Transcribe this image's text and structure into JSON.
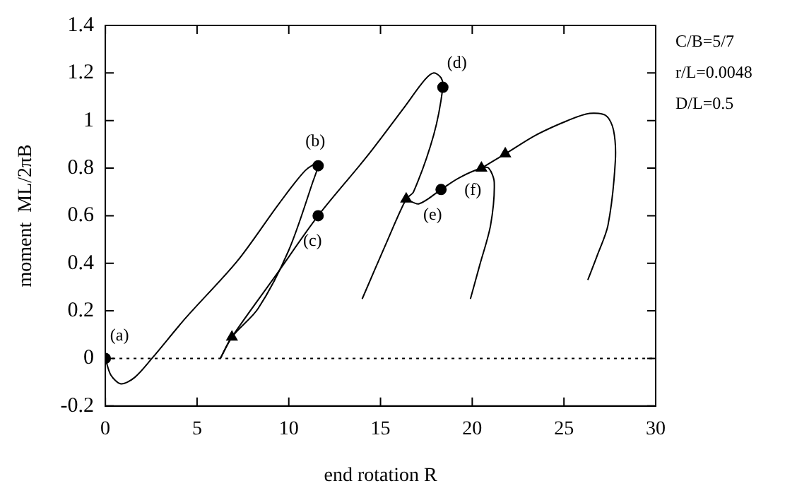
{
  "chart_data": {
    "type": "line",
    "xlabel": "end rotation R",
    "ylabel": "moment  ML/2πB",
    "xlim": [
      0,
      30
    ],
    "xticks": [
      0,
      5,
      10,
      15,
      20,
      25,
      30
    ],
    "ylim": [
      -0.2,
      1.4
    ],
    "yticks": [
      -0.2,
      0,
      0.2,
      0.4,
      0.6,
      0.8,
      1,
      1.2,
      1.4
    ],
    "grid": false,
    "legend": false,
    "series": [
      {
        "type": "line",
        "color": "#000000",
        "marker": "none",
        "x": [
          0,
          0.3,
          0.85,
          1.6,
          2.54,
          4.38,
          7.2,
          9.46,
          10.9,
          11.6,
          11.3,
          10.0,
          8.33,
          6.9,
          6.27
        ],
        "values": [
          0,
          -0.07,
          -0.107,
          -0.08,
          0,
          0.17,
          0.41,
          0.65,
          0.79,
          0.82,
          0.74,
          0.455,
          0.21,
          0.09,
          0
        ]
      },
      {
        "type": "line",
        "color": "#000000",
        "marker": "none",
        "x": [
          6.27,
          6.9,
          9.3,
          11.6,
          14.27,
          16.24,
          17.4,
          17.9,
          18.3,
          18.4,
          17.9,
          16.8,
          16.4,
          15.4,
          14.0
        ],
        "values": [
          0,
          0.09,
          0.35,
          0.6,
          0.85,
          1.05,
          1.17,
          1.2,
          1.18,
          1.14,
          0.94,
          0.7,
          0.67,
          0.5,
          0.25
        ]
      },
      {
        "type": "line",
        "color": "#000000",
        "marker": "none",
        "x": [
          16.4,
          17.1,
          18.3,
          19.3,
          20.5,
          20.9,
          21.2,
          21.0,
          20.4,
          19.9
        ],
        "values": [
          0.67,
          0.65,
          0.71,
          0.76,
          0.8,
          0.8,
          0.74,
          0.56,
          0.39,
          0.25
        ]
      },
      {
        "type": "line",
        "color": "#000000",
        "marker": "none",
        "x": [
          20.5,
          21.8,
          23.5,
          25.2,
          26.4,
          27.3,
          27.7,
          27.8,
          27.4,
          26.8,
          26.3
        ],
        "values": [
          0.8,
          0.86,
          0.94,
          1.0,
          1.03,
          1.02,
          0.96,
          0.83,
          0.56,
          0.43,
          0.33
        ]
      },
      {
        "type": "scatter",
        "color": "#000000",
        "marker": "circle",
        "x": [
          0,
          11.6,
          11.6,
          18.4,
          18.3
        ],
        "values": [
          0,
          0.81,
          0.6,
          1.14,
          0.71
        ]
      },
      {
        "type": "scatter",
        "color": "#000000",
        "marker": "triangle",
        "x": [
          6.9,
          16.4,
          20.5,
          21.8
        ],
        "values": [
          0.09,
          0.67,
          0.8,
          0.86
        ]
      }
    ],
    "ref_lines": [
      {
        "axis": "y",
        "value": 0,
        "line_style": "dotted",
        "color": "#000000"
      }
    ],
    "annotations": [
      {
        "text": "(a)",
        "x": 0,
        "y": 0
      },
      {
        "text": "(b)",
        "x": 11.6,
        "y": 0.81
      },
      {
        "text": "(c)",
        "x": 11.6,
        "y": 0.6
      },
      {
        "text": "(d)",
        "x": 18.4,
        "y": 1.14
      },
      {
        "text": "(e)",
        "x": 18.3,
        "y": 0.71
      },
      {
        "text": "(f)",
        "x": 20.5,
        "y": 0.8
      },
      "C/B=5/7",
      "r/L=0.0048",
      "D/L=0.5"
    ]
  }
}
